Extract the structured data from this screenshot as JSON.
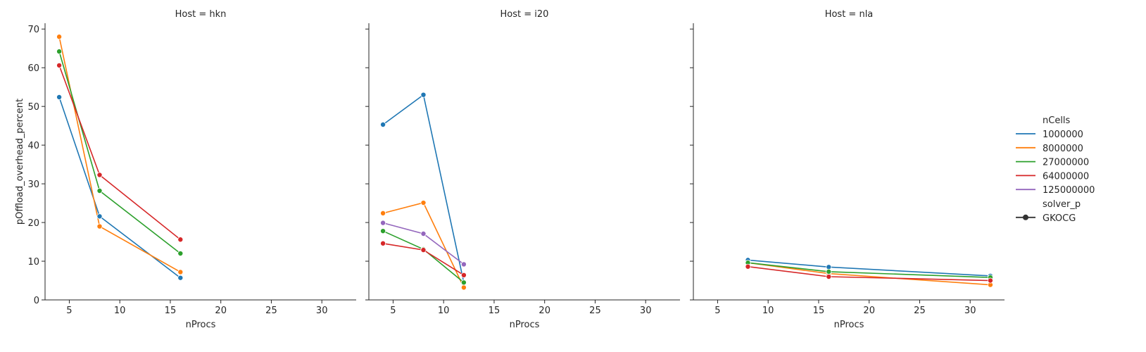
{
  "chart_data": {
    "type": "line",
    "ylabel": "pOffload_overhead_percent",
    "xlabel": "nProcs",
    "xlim": [
      2.6,
      33.4
    ],
    "ylim": [
      0,
      71.5
    ],
    "xticks": [
      5,
      10,
      15,
      20,
      25,
      30
    ],
    "yticks": [
      0,
      10,
      20,
      30,
      40,
      50,
      60,
      70
    ],
    "panels": [
      {
        "title": "Host = hkn",
        "series": [
          {
            "name": "1000000",
            "x": [
              4,
              8,
              16
            ],
            "y": [
              52.4,
              21.6,
              5.7
            ]
          },
          {
            "name": "8000000",
            "x": [
              4,
              8,
              16
            ],
            "y": [
              68.0,
              19.0,
              7.2
            ]
          },
          {
            "name": "27000000",
            "x": [
              4,
              8,
              16
            ],
            "y": [
              64.2,
              28.2,
              12.0
            ]
          },
          {
            "name": "64000000",
            "x": [
              4,
              8,
              16
            ],
            "y": [
              60.6,
              32.3,
              15.6
            ]
          }
        ]
      },
      {
        "title": "Host = i20",
        "series": [
          {
            "name": "1000000",
            "x": [
              4,
              8,
              12
            ],
            "y": [
              45.3,
              53.0,
              4.5
            ]
          },
          {
            "name": "8000000",
            "x": [
              4,
              8,
              12
            ],
            "y": [
              22.4,
              25.1,
              3.2
            ]
          },
          {
            "name": "27000000",
            "x": [
              4,
              8,
              12
            ],
            "y": [
              17.8,
              13.1,
              4.5
            ]
          },
          {
            "name": "64000000",
            "x": [
              4,
              8,
              12
            ],
            "y": [
              14.6,
              12.9,
              6.4
            ]
          },
          {
            "name": "125000000",
            "x": [
              4,
              8,
              12
            ],
            "y": [
              19.9,
              17.1,
              9.2
            ]
          }
        ]
      },
      {
        "title": "Host = nla",
        "series": [
          {
            "name": "1000000",
            "x": [
              8,
              16,
              32
            ],
            "y": [
              10.3,
              8.5,
              6.2
            ]
          },
          {
            "name": "8000000",
            "x": [
              8,
              16,
              32
            ],
            "y": [
              9.6,
              6.8,
              3.9
            ]
          },
          {
            "name": "27000000",
            "x": [
              8,
              16,
              32
            ],
            "y": [
              9.6,
              7.3,
              5.8
            ]
          },
          {
            "name": "64000000",
            "x": [
              8,
              16,
              32
            ],
            "y": [
              8.6,
              6.0,
              5.0
            ]
          }
        ]
      }
    ],
    "legend": {
      "placement": "right",
      "hue_title": "nCells",
      "hue_entries": [
        {
          "label": "1000000",
          "color": "#1f77b4"
        },
        {
          "label": "8000000",
          "color": "#ff7f0e"
        },
        {
          "label": "27000000",
          "color": "#2ca02c"
        },
        {
          "label": "64000000",
          "color": "#d62728"
        },
        {
          "label": "125000000",
          "color": "#9467bd"
        }
      ],
      "style_title": "solver_p",
      "style_entries": [
        {
          "label": "GKOCG",
          "color": "#333333",
          "marker": "circle"
        }
      ]
    }
  }
}
